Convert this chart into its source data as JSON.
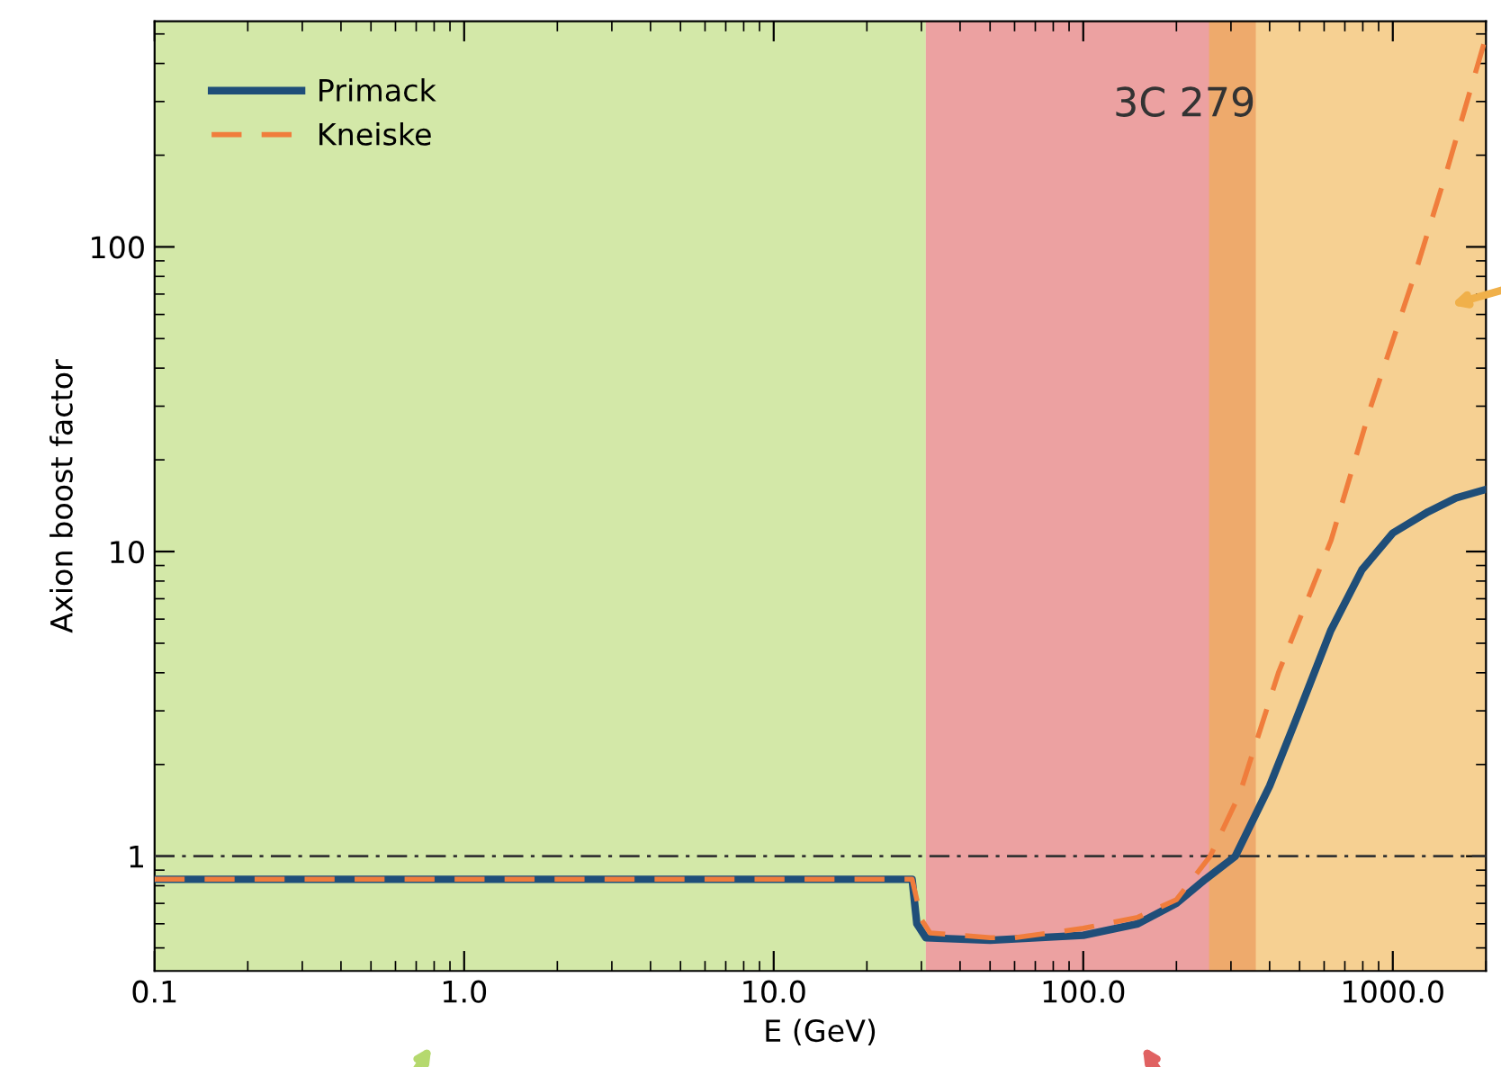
{
  "chart_data": {
    "type": "line",
    "xlabel": "E (GeV)",
    "ylabel": "Axion boost factor",
    "log": "xy",
    "xlim": [
      0.1,
      2000
    ],
    "ylim": [
      0.42,
      550
    ],
    "xticks": [
      0.1,
      {
        "value": 1,
        "label": "1.0"
      },
      {
        "value": 10,
        "label": "10.0"
      },
      {
        "value": 100,
        "label": "100.0"
      },
      {
        "value": 1000,
        "label": "1000.0"
      }
    ],
    "yticks": [
      1,
      10,
      100
    ],
    "legend": "top left",
    "grid": false,
    "annotations": [
      "3C 279"
    ],
    "ref_lines": [
      {
        "axis": "y",
        "value": 1,
        "label": null,
        "color": "#333333",
        "line_style": "dashdot"
      }
    ],
    "bands": [
      {
        "axis": "x",
        "from": 0.1,
        "to": 31,
        "label": null,
        "color": "#b5d96e"
      },
      {
        "axis": "x",
        "from": 31,
        "to": 361,
        "label": null,
        "color": "#e06262"
      },
      {
        "axis": "x",
        "from": 255,
        "to": 2000,
        "label": null,
        "color": "#f0b04a"
      }
    ],
    "series": [
      {
        "name": "Primack",
        "color": "#1f4e79",
        "line_style": "solid",
        "x": [
          0.1,
          28,
          29,
          31,
          50,
          100,
          150,
          200,
          248,
          310,
          400,
          485,
          630,
          794,
          1000,
          1300,
          1600,
          2000
        ],
        "values": [
          0.84,
          0.84,
          0.6,
          0.54,
          0.53,
          0.55,
          0.6,
          0.7,
          0.84,
          1.0,
          1.7,
          2.78,
          5.5,
          8.7,
          11.5,
          13.5,
          15,
          16
        ]
      },
      {
        "name": "Kneiske",
        "color": "#f07d3c",
        "line_style": "dashed",
        "x": [
          0.1,
          28,
          30,
          32,
          50,
          60,
          100,
          150,
          200,
          257,
          320,
          427,
          632,
          850,
          1190,
          1500,
          2000
        ],
        "values": [
          0.84,
          0.84,
          0.62,
          0.56,
          0.54,
          0.54,
          0.58,
          0.63,
          0.72,
          1.0,
          1.6,
          4.0,
          10.9,
          30,
          84,
          180,
          490
        ]
      }
    ]
  }
}
